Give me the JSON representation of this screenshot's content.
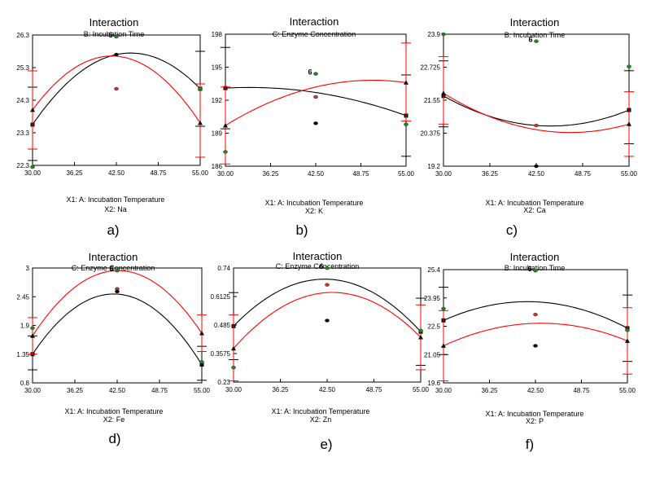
{
  "figure": {
    "panels": [
      {
        "letter": "a)",
        "title": "Interaction",
        "subtitle": "B: Incubation Time",
        "xlabel": "X1: A: Incubation Temperature",
        "x2label": "X2: Na",
        "yticks": [
          "26.3",
          "25.3",
          "24.3",
          "23.3",
          "22.3"
        ],
        "xticks": [
          "30.00",
          "36.25",
          "42.50",
          "48.75",
          "55.00"
        ],
        "run_label": "6"
      },
      {
        "letter": "b)",
        "title": "Interaction",
        "subtitle": "C: Enzyme Concentration",
        "xlabel": "X1: A: Incubation Temperature",
        "x2label": "X2: K",
        "yticks": [
          "198",
          "195",
          "192",
          "189",
          "186"
        ],
        "xticks": [
          "30.00",
          "36.25",
          "42.50",
          "48.75",
          "55.00"
        ],
        "run_label": "6"
      },
      {
        "letter": "c)",
        "title": "Interaction",
        "subtitle": "B: Incubation Time",
        "xlabel": "X1: A: Incubation Temperature",
        "x2label": "X2: Ca",
        "yticks": [
          "23.9",
          "22.725",
          "21.55",
          "20.375",
          "19.2"
        ],
        "xticks": [
          "30.00",
          "36.25",
          "42.50",
          "48.75",
          "55.00"
        ],
        "run_label": "6"
      },
      {
        "letter": "d)",
        "title": "Interaction",
        "subtitle": "C: Enzyme Concentration",
        "xlabel": "X1: A: Incubation Temperature",
        "x2label": "X2: Fe",
        "yticks": [
          "3",
          "2.45",
          "1.9",
          "1.35",
          "0.8"
        ],
        "xticks": [
          "30.00",
          "36.25",
          "42.50",
          "48.75",
          "55.00"
        ],
        "run_label": "6"
      },
      {
        "letter": "e)",
        "title": "Interaction",
        "subtitle": "C: Enzyme Concentration",
        "xlabel": "X1: A: Incubation Temperature",
        "x2label": "X2: Zn",
        "yticks": [
          "0.74",
          "0.6125",
          "0.485",
          "0.3575",
          "0.23"
        ],
        "xticks": [
          "30.00",
          "36.25",
          "42.50",
          "48.75",
          "55.00"
        ],
        "run_label": "6"
      },
      {
        "letter": "f)",
        "title": "Interaction",
        "subtitle": "B: Incubation Time",
        "xlabel": "X1: A: Incubation Temperature",
        "x2label": "X2: P",
        "yticks": [
          "25.4",
          "23.95",
          "22.5",
          "21.05",
          "19.6"
        ],
        "xticks": [
          "30.00",
          "36.25",
          "42.50",
          "48.75",
          "55.00"
        ],
        "run_label": "6"
      }
    ]
  },
  "chart_data": [
    {
      "type": "line",
      "title": "Interaction",
      "subtitle": "B: Incubation Time",
      "xlabel": "X1: A: Incubation Temperature",
      "x2label": "X2: Na",
      "xlim": [
        30,
        55
      ],
      "ylim": [
        22.3,
        26.3
      ],
      "series": [
        {
          "color": "#000000",
          "x": [
            30,
            42.5,
            55
          ],
          "y": [
            23.55,
            25.7,
            24.65
          ],
          "err_low": [
            22.45,
            null,
            23.5
          ],
          "err_high": [
            24.7,
            null,
            25.8
          ],
          "marker": "square",
          "end_markers": [
            "square",
            "square"
          ]
        },
        {
          "color": "#ff0000",
          "x": [
            30,
            42.5,
            55
          ],
          "y": [
            24.0,
            25.65,
            23.6
          ],
          "err_low": [
            22.8,
            null,
            22.55
          ],
          "err_high": [
            25.2,
            null,
            24.8
          ],
          "marker": "triangle",
          "end_markers": [
            "triangle",
            "triangle"
          ]
        }
      ],
      "points": [
        {
          "x": 30,
          "y": 22.25,
          "color": "green"
        },
        {
          "x": 42.5,
          "y": 26.25,
          "color": "green"
        },
        {
          "x": 42.5,
          "y": 24.65,
          "color": "red"
        },
        {
          "x": 42.5,
          "y": 25.7,
          "color": "black"
        },
        {
          "x": 55,
          "y": 24.65,
          "color": "green"
        }
      ]
    },
    {
      "type": "line",
      "title": "Interaction",
      "subtitle": "C: Enzyme Concentration",
      "xlabel": "X1: A: Incubation Temperature",
      "x2label": "X2: K",
      "xlim": [
        30,
        55
      ],
      "ylim": [
        186,
        198
      ],
      "series": [
        {
          "color": "#000000",
          "x": [
            30,
            42.5,
            55
          ],
          "y": [
            193.1,
            192.7,
            190.6
          ],
          "err_low": [
            189.4,
            null,
            186.9
          ],
          "err_high": [
            196.8,
            null,
            194.3
          ],
          "marker": "square",
          "end_markers": [
            "square",
            "square"
          ]
        },
        {
          "color": "#ff0000",
          "x": [
            30,
            42.5,
            55
          ],
          "y": [
            189.7,
            193.2,
            193.6
          ],
          "err_low": [
            186.2,
            null,
            190.1
          ],
          "err_high": [
            193.2,
            null,
            197.2
          ],
          "marker": "triangle",
          "end_markers": [
            "triangle",
            "triangle"
          ]
        }
      ],
      "points": [
        {
          "x": 30,
          "y": 187.3,
          "color": "green"
        },
        {
          "x": 42.5,
          "y": 194.4,
          "color": "green"
        },
        {
          "x": 42.5,
          "y": 192.3,
          "color": "red"
        },
        {
          "x": 42.5,
          "y": 189.9,
          "color": "black"
        },
        {
          "x": 55,
          "y": 189.8,
          "color": "green"
        }
      ]
    },
    {
      "type": "line",
      "title": "Interaction",
      "subtitle": "B: Incubation Time",
      "xlabel": "X1: A: Incubation Temperature",
      "x2label": "X2: Ca",
      "xlim": [
        30,
        55
      ],
      "ylim": [
        19.2,
        23.9
      ],
      "series": [
        {
          "color": "#000000",
          "x": [
            30,
            42.5,
            55
          ],
          "y": [
            21.7,
            20.65,
            21.2
          ],
          "err_low": [
            20.6,
            null,
            20.0
          ],
          "err_high": [
            22.95,
            null,
            22.6
          ],
          "marker": "square",
          "end_markers": [
            "square",
            "square"
          ]
        },
        {
          "color": "#ff0000",
          "x": [
            30,
            42.5,
            55
          ],
          "y": [
            21.8,
            20.5,
            20.7
          ],
          "err_low": [
            20.7,
            null,
            19.55
          ],
          "err_high": [
            23.1,
            null,
            21.85
          ],
          "marker": "triangle",
          "end_markers": [
            "triangle",
            "triangle"
          ]
        }
      ],
      "points": [
        {
          "x": 30,
          "y": 23.9,
          "color": "green"
        },
        {
          "x": 42.5,
          "y": 23.65,
          "color": "green"
        },
        {
          "x": 42.5,
          "y": 20.65,
          "color": "red"
        },
        {
          "x": 42.5,
          "y": 19.2,
          "color": "black"
        },
        {
          "x": 55,
          "y": 22.75,
          "color": "green"
        }
      ]
    },
    {
      "type": "line",
      "title": "Interaction",
      "subtitle": "C: Enzyme Concentration",
      "xlabel": "X1: A: Incubation Temperature",
      "x2label": "X2: Fe",
      "xlim": [
        30,
        55
      ],
      "ylim": [
        0.8,
        3
      ],
      "series": [
        {
          "color": "#000000",
          "x": [
            30,
            42.5,
            55
          ],
          "y": [
            1.35,
            2.5,
            1.15
          ],
          "err_low": [
            1.05,
            null,
            0.85
          ],
          "err_high": [
            1.7,
            null,
            1.5
          ],
          "marker": "square",
          "end_markers": [
            "square",
            "square"
          ]
        },
        {
          "color": "#ff0000",
          "x": [
            30,
            42.5,
            55
          ],
          "y": [
            1.7,
            2.95,
            1.75
          ],
          "err_low": [
            1.35,
            null,
            1.4
          ],
          "err_high": [
            2.05,
            null,
            2.1
          ],
          "marker": "triangle",
          "end_markers": [
            "triangle",
            "triangle"
          ]
        }
      ],
      "points": [
        {
          "x": 30,
          "y": 1.85,
          "color": "green"
        },
        {
          "x": 42.5,
          "y": 2.95,
          "color": "green"
        },
        {
          "x": 42.5,
          "y": 2.6,
          "color": "red"
        },
        {
          "x": 42.5,
          "y": 2.55,
          "color": "black"
        },
        {
          "x": 55,
          "y": 1.2,
          "color": "green"
        }
      ]
    },
    {
      "type": "line",
      "title": "Interaction",
      "subtitle": "C: Enzyme Concentration",
      "xlabel": "X1: A: Incubation Temperature",
      "x2label": "X2: Zn",
      "xlim": [
        30,
        55
      ],
      "ylim": [
        0.23,
        0.74
      ],
      "series": [
        {
          "color": "#000000",
          "x": [
            30,
            42.5,
            55
          ],
          "y": [
            0.48,
            0.69,
            0.455
          ],
          "err_low": [
            0.33,
            null,
            0.305
          ],
          "err_high": [
            0.63,
            null,
            0.605
          ],
          "marker": "square",
          "end_markers": [
            "square",
            "square"
          ]
        },
        {
          "color": "#ff0000",
          "x": [
            30,
            42.5,
            55
          ],
          "y": [
            0.38,
            0.63,
            0.43
          ],
          "err_low": [
            0.235,
            null,
            0.285
          ],
          "err_high": [
            0.53,
            null,
            0.575
          ],
          "marker": "triangle",
          "end_markers": [
            "triangle",
            "triangle"
          ]
        }
      ],
      "points": [
        {
          "x": 30,
          "y": 0.295,
          "color": "green"
        },
        {
          "x": 42.5,
          "y": 0.74,
          "color": "green"
        },
        {
          "x": 42.5,
          "y": 0.665,
          "color": "red"
        },
        {
          "x": 42.5,
          "y": 0.505,
          "color": "black"
        },
        {
          "x": 55,
          "y": 0.46,
          "color": "green"
        }
      ]
    },
    {
      "type": "line",
      "title": "Interaction",
      "subtitle": "B: Incubation Time",
      "xlabel": "X1: A: Incubation Temperature",
      "x2label": "X2: P",
      "xlim": [
        30,
        55
      ],
      "ylim": [
        19.6,
        25.4
      ],
      "series": [
        {
          "color": "#000000",
          "x": [
            30,
            42.5,
            55
          ],
          "y": [
            22.8,
            23.75,
            22.4
          ],
          "err_low": [
            21.05,
            null,
            20.7
          ],
          "err_high": [
            24.5,
            null,
            24.1
          ],
          "marker": "square",
          "end_markers": [
            "square",
            "square"
          ]
        },
        {
          "color": "#ff0000",
          "x": [
            30,
            42.5,
            55
          ],
          "y": [
            21.5,
            22.65,
            21.75
          ],
          "err_low": [
            19.7,
            null,
            20.05
          ],
          "err_high": [
            23.3,
            null,
            23.45
          ],
          "marker": "triangle",
          "end_markers": [
            "triangle",
            "triangle"
          ]
        }
      ],
      "points": [
        {
          "x": 30,
          "y": 23.4,
          "color": "green"
        },
        {
          "x": 42.5,
          "y": 25.35,
          "color": "green"
        },
        {
          "x": 42.5,
          "y": 23.1,
          "color": "red"
        },
        {
          "x": 42.5,
          "y": 21.5,
          "color": "black"
        },
        {
          "x": 55,
          "y": 22.3,
          "color": "green"
        }
      ]
    }
  ],
  "colors": {
    "series_black": "#000000",
    "series_red": "#ff0000",
    "point_green": "#1a8a1a",
    "point_red": "#c0392b",
    "point_black": "#000000",
    "frame": "#000000"
  }
}
